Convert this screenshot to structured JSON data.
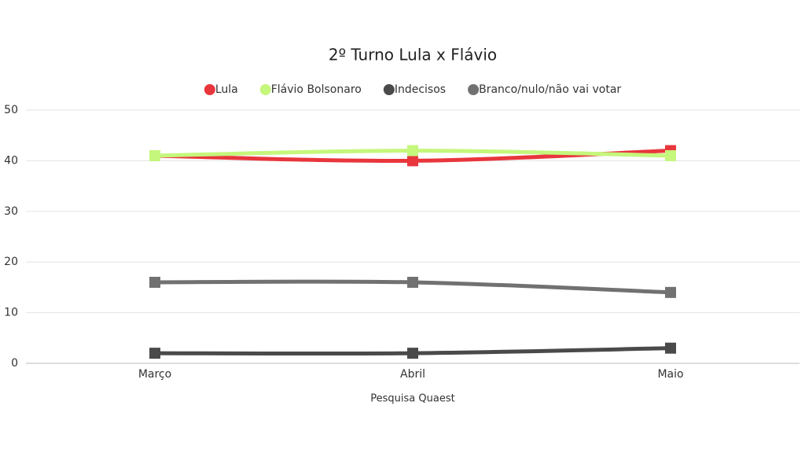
{
  "chart_data": {
    "type": "line",
    "title": "2º Turno Lula x Flávio",
    "x_label": "Pesquisa Quaest",
    "categories": [
      "Março",
      "Abril",
      "Maio"
    ],
    "series": [
      {
        "name": "Lula",
        "color": "#e8363c",
        "values": [
          41,
          40,
          42
        ]
      },
      {
        "name": "Flávio Bolsonaro",
        "color": "#c5f77c",
        "values": [
          41,
          42,
          41
        ]
      },
      {
        "name": "Indecisos",
        "color": "#4a4a4a",
        "values": [
          2,
          2,
          3
        ]
      },
      {
        "name": "Branco/nulo/não vai votar",
        "color": "#717171",
        "values": [
          16,
          16,
          14
        ]
      }
    ],
    "ylim": [
      0,
      50
    ],
    "yticks": [
      0,
      10,
      20,
      30,
      40,
      50
    ],
    "grid": true,
    "legend": "top"
  }
}
